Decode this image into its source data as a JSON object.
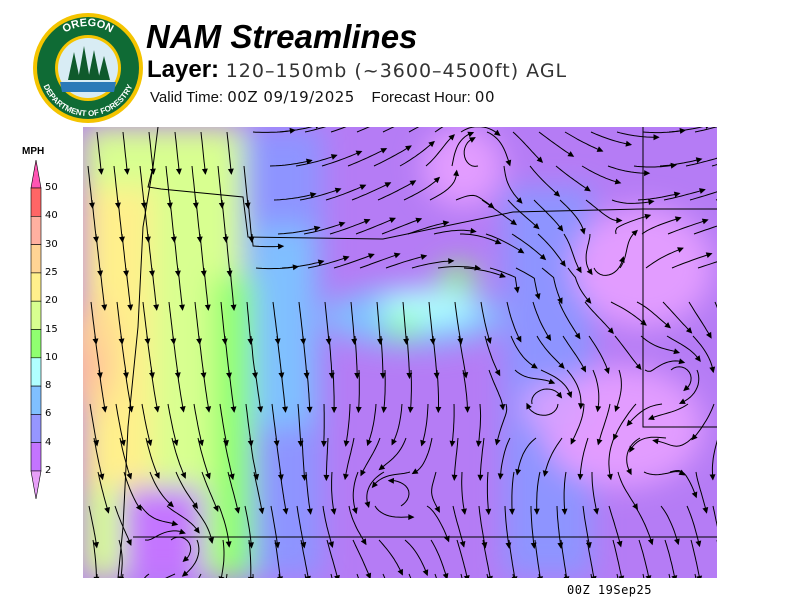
{
  "logo": {
    "top_text": "OREGON",
    "bottom_text": "DEPARTMENT OF FORESTRY"
  },
  "header": {
    "title": "NAM Streamlines",
    "layer_label": "Layer:",
    "layer_value": "120–150mb (~3600–4500ft) AGL",
    "valid_label": "Valid Time:",
    "valid_value": "00Z 09/19/2025",
    "forecast_label": "Forecast Hour:",
    "forecast_value": "00"
  },
  "legend": {
    "unit": "MPH",
    "ticks": [
      "50",
      "40",
      "30",
      "25",
      "20",
      "15",
      "10",
      "8",
      "6",
      "4",
      "2"
    ],
    "colors": [
      "#ff6666",
      "#ffb0a0",
      "#ffd494",
      "#fff08c",
      "#d8ff90",
      "#90ff70",
      "#b0ffff",
      "#80c0ff",
      "#9696ff",
      "#c474ff"
    ],
    "over_color": "#ff55b4",
    "under_color": "#e8a0f8"
  },
  "footer": {
    "timestamp": "00Z 19Sep25"
  }
}
